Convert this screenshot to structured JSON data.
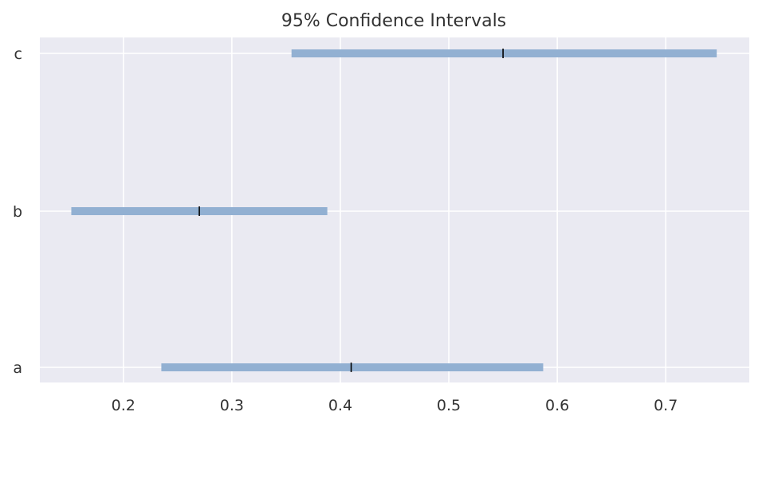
{
  "chart_data": {
    "type": "interval",
    "title": "95% Confidence Intervals",
    "xlabel": "",
    "ylabel": "",
    "xlim": [
      0.123,
      0.777
    ],
    "x_ticks": [
      0.2,
      0.3,
      0.4,
      0.5,
      0.6,
      0.7
    ],
    "x_tick_labels": [
      "0.2",
      "0.3",
      "0.4",
      "0.5",
      "0.6",
      "0.7"
    ],
    "categories": [
      "a",
      "b",
      "c"
    ],
    "intervals": [
      {
        "category": "a",
        "low": 0.235,
        "high": 0.587,
        "point": 0.41
      },
      {
        "category": "b",
        "low": 0.152,
        "high": 0.388,
        "point": 0.27
      },
      {
        "category": "c",
        "low": 0.355,
        "high": 0.747,
        "point": 0.55
      }
    ],
    "grid": true,
    "colors": {
      "background": "#eaeaf2",
      "grid": "#ffffff",
      "interval": "#92b0d2",
      "point": "#000000",
      "text": "#333333"
    }
  }
}
